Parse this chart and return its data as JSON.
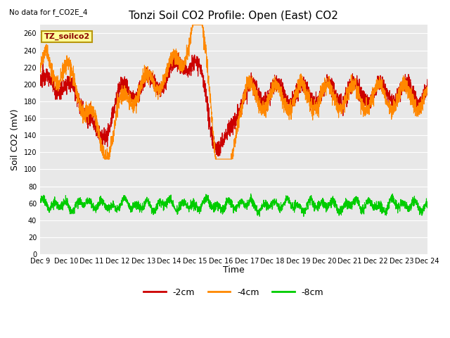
{
  "title": "Tonzi Soil CO2 Profile: Open (East) CO2",
  "subtitle": "No data for f_CO2E_4",
  "ylabel": "Soil CO2 (mV)",
  "xlabel": "Time",
  "legend_label": "TZ_soilco2",
  "series_labels": [
    "-2cm",
    "-4cm",
    "-8cm"
  ],
  "series_colors": [
    "#cc0000",
    "#ff8800",
    "#00cc00"
  ],
  "ylim": [
    0,
    270
  ],
  "yticks": [
    0,
    20,
    40,
    60,
    80,
    100,
    120,
    140,
    160,
    180,
    200,
    220,
    240,
    260
  ],
  "xtick_labels": [
    "Dec 9",
    "Dec 10",
    "Dec 11",
    "Dec 12",
    "Dec 13",
    "Dec 14",
    "Dec 15",
    "Dec 16",
    "Dec 17",
    "Dec 18",
    "Dec 19",
    "Dec 20",
    "Dec 21",
    "Dec 22",
    "Dec 23",
    "Dec 24"
  ],
  "bg_color": "#e8e8e8",
  "grid_color": "#ffffff",
  "fig_bg_color": "#ffffff",
  "title_fontsize": 11,
  "tick_fontsize": 7,
  "ylabel_fontsize": 9
}
